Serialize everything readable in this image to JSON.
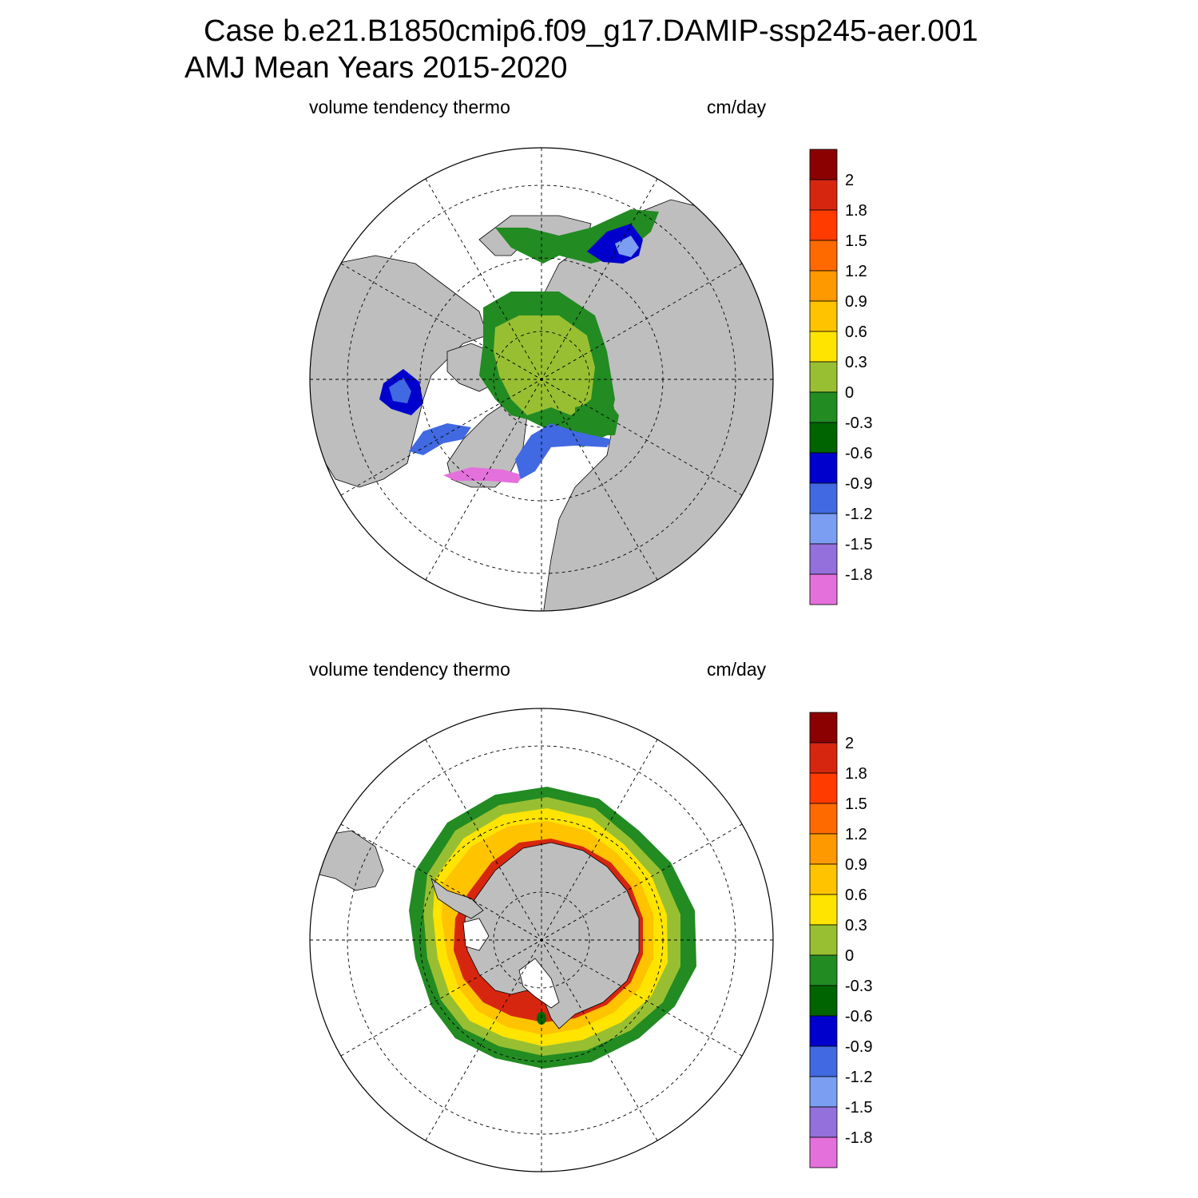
{
  "header": {
    "case_line": "Case b.e21.B1850cmip6.f09_g17.DAMIP-ssp245-aer.001",
    "period_line": "AMJ Mean   Years 2015-2020"
  },
  "colors": {
    "land": "#bebebe",
    "ocean": "#ffffff",
    "scale": [
      "#8b0000",
      "#d7260f",
      "#ff3b00",
      "#ff6a00",
      "#ff9900",
      "#ffc300",
      "#ffe400",
      "#98bf32",
      "#228b22",
      "#006400",
      "#0000cd",
      "#4169e1",
      "#7b9ef2",
      "#9370db",
      "#e470dc"
    ]
  },
  "colorbar_labels": [
    "2",
    "1.8",
    "1.5",
    "1.2",
    "0.9",
    "0.6",
    "0.3",
    "0",
    "-0.3",
    "-0.6",
    "-0.9",
    "-1.2",
    "-1.5",
    "-1.8"
  ],
  "panels": [
    {
      "id": "north",
      "variable": "volume tendency thermo",
      "units": "cm/day"
    },
    {
      "id": "south",
      "variable": "volume tendency thermo",
      "units": "cm/day"
    }
  ]
}
